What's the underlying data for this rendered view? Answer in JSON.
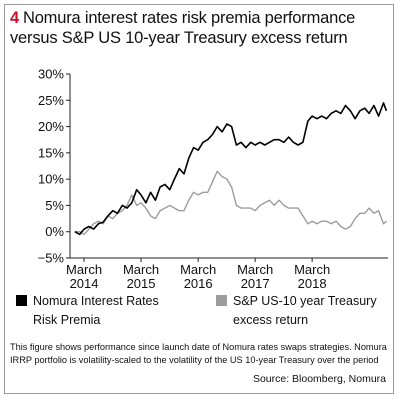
{
  "figure_number": "4",
  "chart_data": {
    "type": "line",
    "title": "Nomura interest rates risk premia performance versus S&P US 10-year Treasury excess return",
    "y_unit": "%",
    "ylim": [
      -5,
      30
    ],
    "yticks": [
      -5,
      0,
      5,
      10,
      15,
      20,
      25,
      30
    ],
    "ytick_labels": [
      "−5%",
      "0%",
      "5%",
      "10%",
      "15%",
      "20%",
      "25%",
      "30%"
    ],
    "xlim": [
      "2013-12-01",
      "2019-06-30"
    ],
    "xticks": [
      {
        "date": "2014-03-01",
        "label": [
          "March",
          "2014"
        ]
      },
      {
        "date": "2015-03-01",
        "label": [
          "March",
          "2015"
        ]
      },
      {
        "date": "2016-03-01",
        "label": [
          "March",
          "2016"
        ]
      },
      {
        "date": "2017-03-01",
        "label": [
          "March",
          "2017"
        ]
      },
      {
        "date": "2018-03-01",
        "label": [
          "March",
          "2018"
        ]
      }
    ],
    "grid": false,
    "legend_position": "bottom",
    "series": [
      {
        "name": "Nomura Interest Rates Risk Premia",
        "color": "#000000",
        "points": [
          [
            "2014-01-01",
            0
          ],
          [
            "2014-02-01",
            -0.5
          ],
          [
            "2014-03-01",
            0.5
          ],
          [
            "2014-04-01",
            1
          ],
          [
            "2014-05-01",
            0.5
          ],
          [
            "2014-06-01",
            1.5
          ],
          [
            "2014-07-01",
            1.8
          ],
          [
            "2014-08-01",
            3
          ],
          [
            "2014-09-01",
            4
          ],
          [
            "2014-10-01",
            3.5
          ],
          [
            "2014-11-01",
            5
          ],
          [
            "2014-12-01",
            4.5
          ],
          [
            "2015-01-01",
            5.5
          ],
          [
            "2015-02-01",
            8
          ],
          [
            "2015-03-01",
            7
          ],
          [
            "2015-04-01",
            5.5
          ],
          [
            "2015-05-01",
            7.5
          ],
          [
            "2015-06-01",
            6
          ],
          [
            "2015-07-01",
            8.5
          ],
          [
            "2015-08-01",
            9
          ],
          [
            "2015-09-01",
            8
          ],
          [
            "2015-10-01",
            10
          ],
          [
            "2015-11-01",
            12
          ],
          [
            "2015-12-01",
            11
          ],
          [
            "2016-01-01",
            14
          ],
          [
            "2016-02-01",
            16
          ],
          [
            "2016-03-01",
            15.5
          ],
          [
            "2016-04-01",
            17
          ],
          [
            "2016-05-01",
            17.5
          ],
          [
            "2016-06-01",
            18.5
          ],
          [
            "2016-07-01",
            20
          ],
          [
            "2016-08-01",
            19
          ],
          [
            "2016-09-01",
            20.5
          ],
          [
            "2016-10-01",
            20
          ],
          [
            "2016-11-01",
            16.5
          ],
          [
            "2016-12-01",
            17
          ],
          [
            "2017-01-01",
            16
          ],
          [
            "2017-02-01",
            17
          ],
          [
            "2017-03-01",
            16.5
          ],
          [
            "2017-04-01",
            17
          ],
          [
            "2017-05-01",
            16.5
          ],
          [
            "2017-06-01",
            17
          ],
          [
            "2017-07-01",
            17.5
          ],
          [
            "2017-08-01",
            17.5
          ],
          [
            "2017-09-01",
            17
          ],
          [
            "2017-10-01",
            18
          ],
          [
            "2017-11-01",
            17
          ],
          [
            "2017-12-01",
            16.5
          ],
          [
            "2018-01-01",
            17
          ],
          [
            "2018-02-01",
            21
          ],
          [
            "2018-03-01",
            22
          ],
          [
            "2018-04-01",
            21.5
          ],
          [
            "2018-05-01",
            22
          ],
          [
            "2018-06-01",
            21.5
          ],
          [
            "2018-07-01",
            22.5
          ],
          [
            "2018-08-01",
            23
          ],
          [
            "2018-09-01",
            22.5
          ],
          [
            "2018-10-01",
            24
          ],
          [
            "2018-11-01",
            23
          ],
          [
            "2018-12-01",
            21.5
          ],
          [
            "2019-01-01",
            23
          ],
          [
            "2019-02-01",
            23.5
          ],
          [
            "2019-03-01",
            22.5
          ],
          [
            "2019-04-01",
            24
          ],
          [
            "2019-05-01",
            22
          ],
          [
            "2019-06-01",
            24.5
          ],
          [
            "2019-06-20",
            23
          ]
        ]
      },
      {
        "name": "S&P US-10 year Treasury excess return",
        "color": "#9d9d9d",
        "points": [
          [
            "2014-01-01",
            0
          ],
          [
            "2014-02-01",
            0
          ],
          [
            "2014-03-01",
            -0.5
          ],
          [
            "2014-04-01",
            0.5
          ],
          [
            "2014-05-01",
            1.5
          ],
          [
            "2014-06-01",
            2
          ],
          [
            "2014-07-01",
            1.5
          ],
          [
            "2014-08-01",
            3
          ],
          [
            "2014-09-01",
            2.5
          ],
          [
            "2014-10-01",
            3.5
          ],
          [
            "2014-11-01",
            4
          ],
          [
            "2014-12-01",
            5
          ],
          [
            "2015-01-01",
            7
          ],
          [
            "2015-02-01",
            5
          ],
          [
            "2015-03-01",
            5.5
          ],
          [
            "2015-04-01",
            4.5
          ],
          [
            "2015-05-01",
            3
          ],
          [
            "2015-06-01",
            2.5
          ],
          [
            "2015-07-01",
            4
          ],
          [
            "2015-08-01",
            4.5
          ],
          [
            "2015-09-01",
            5
          ],
          [
            "2015-10-01",
            4.5
          ],
          [
            "2015-11-01",
            4
          ],
          [
            "2015-12-01",
            4
          ],
          [
            "2016-01-01",
            6
          ],
          [
            "2016-02-01",
            7.5
          ],
          [
            "2016-03-01",
            7
          ],
          [
            "2016-04-01",
            7.5
          ],
          [
            "2016-05-01",
            7.5
          ],
          [
            "2016-06-01",
            9.5
          ],
          [
            "2016-07-01",
            11.5
          ],
          [
            "2016-08-01",
            10.5
          ],
          [
            "2016-09-01",
            10
          ],
          [
            "2016-10-01",
            8.5
          ],
          [
            "2016-11-01",
            5
          ],
          [
            "2016-12-01",
            4.5
          ],
          [
            "2017-01-01",
            4.5
          ],
          [
            "2017-02-01",
            4.5
          ],
          [
            "2017-03-01",
            4
          ],
          [
            "2017-04-01",
            5
          ],
          [
            "2017-05-01",
            5.5
          ],
          [
            "2017-06-01",
            6
          ],
          [
            "2017-07-01",
            5
          ],
          [
            "2017-08-01",
            6
          ],
          [
            "2017-09-01",
            5
          ],
          [
            "2017-10-01",
            4.5
          ],
          [
            "2017-11-01",
            4.5
          ],
          [
            "2017-12-01",
            4.5
          ],
          [
            "2018-01-01",
            3
          ],
          [
            "2018-02-01",
            1.5
          ],
          [
            "2018-03-01",
            2
          ],
          [
            "2018-04-01",
            1.5
          ],
          [
            "2018-05-01",
            2
          ],
          [
            "2018-06-01",
            2
          ],
          [
            "2018-07-01",
            1.5
          ],
          [
            "2018-08-01",
            2
          ],
          [
            "2018-09-01",
            1
          ],
          [
            "2018-10-01",
            0.5
          ],
          [
            "2018-11-01",
            1
          ],
          [
            "2018-12-01",
            2.5
          ],
          [
            "2019-01-01",
            3.5
          ],
          [
            "2019-02-01",
            3.5
          ],
          [
            "2019-03-01",
            4.5
          ],
          [
            "2019-04-01",
            3.5
          ],
          [
            "2019-05-01",
            4
          ],
          [
            "2019-06-01",
            1.5
          ],
          [
            "2019-06-20",
            2
          ]
        ]
      }
    ]
  },
  "legend": {
    "items": [
      {
        "label": "Nomura Interest Rates Risk Premia",
        "color": "#000000"
      },
      {
        "label": "S&P US-10 year Treasury excess return",
        "color": "#9d9d9d"
      }
    ]
  },
  "note": "This figure shows performance since launch date of Nomura rates swaps strategies. Nomura IRRP portfolio is volatility-scaled to the volatility of the US 10-year Treasury over the period",
  "source": "Source: Bloomberg, Nomura",
  "colors": {
    "title_number": "#c8102e",
    "frame": "#9a9a9a"
  }
}
